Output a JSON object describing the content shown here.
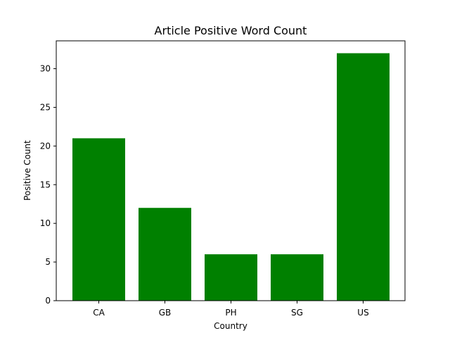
{
  "chart_data": {
    "type": "bar",
    "title": "Article Positive Word Count",
    "xlabel": "Country",
    "ylabel": "Positive Count",
    "categories": [
      "CA",
      "GB",
      "PH",
      "SG",
      "US"
    ],
    "values": [
      21,
      12,
      6,
      6,
      32
    ],
    "ylim": [
      0,
      33.6
    ],
    "yticks": [
      0,
      5,
      10,
      15,
      20,
      25,
      30
    ],
    "bar_color": "#008000",
    "grid": false,
    "legend": "none"
  }
}
